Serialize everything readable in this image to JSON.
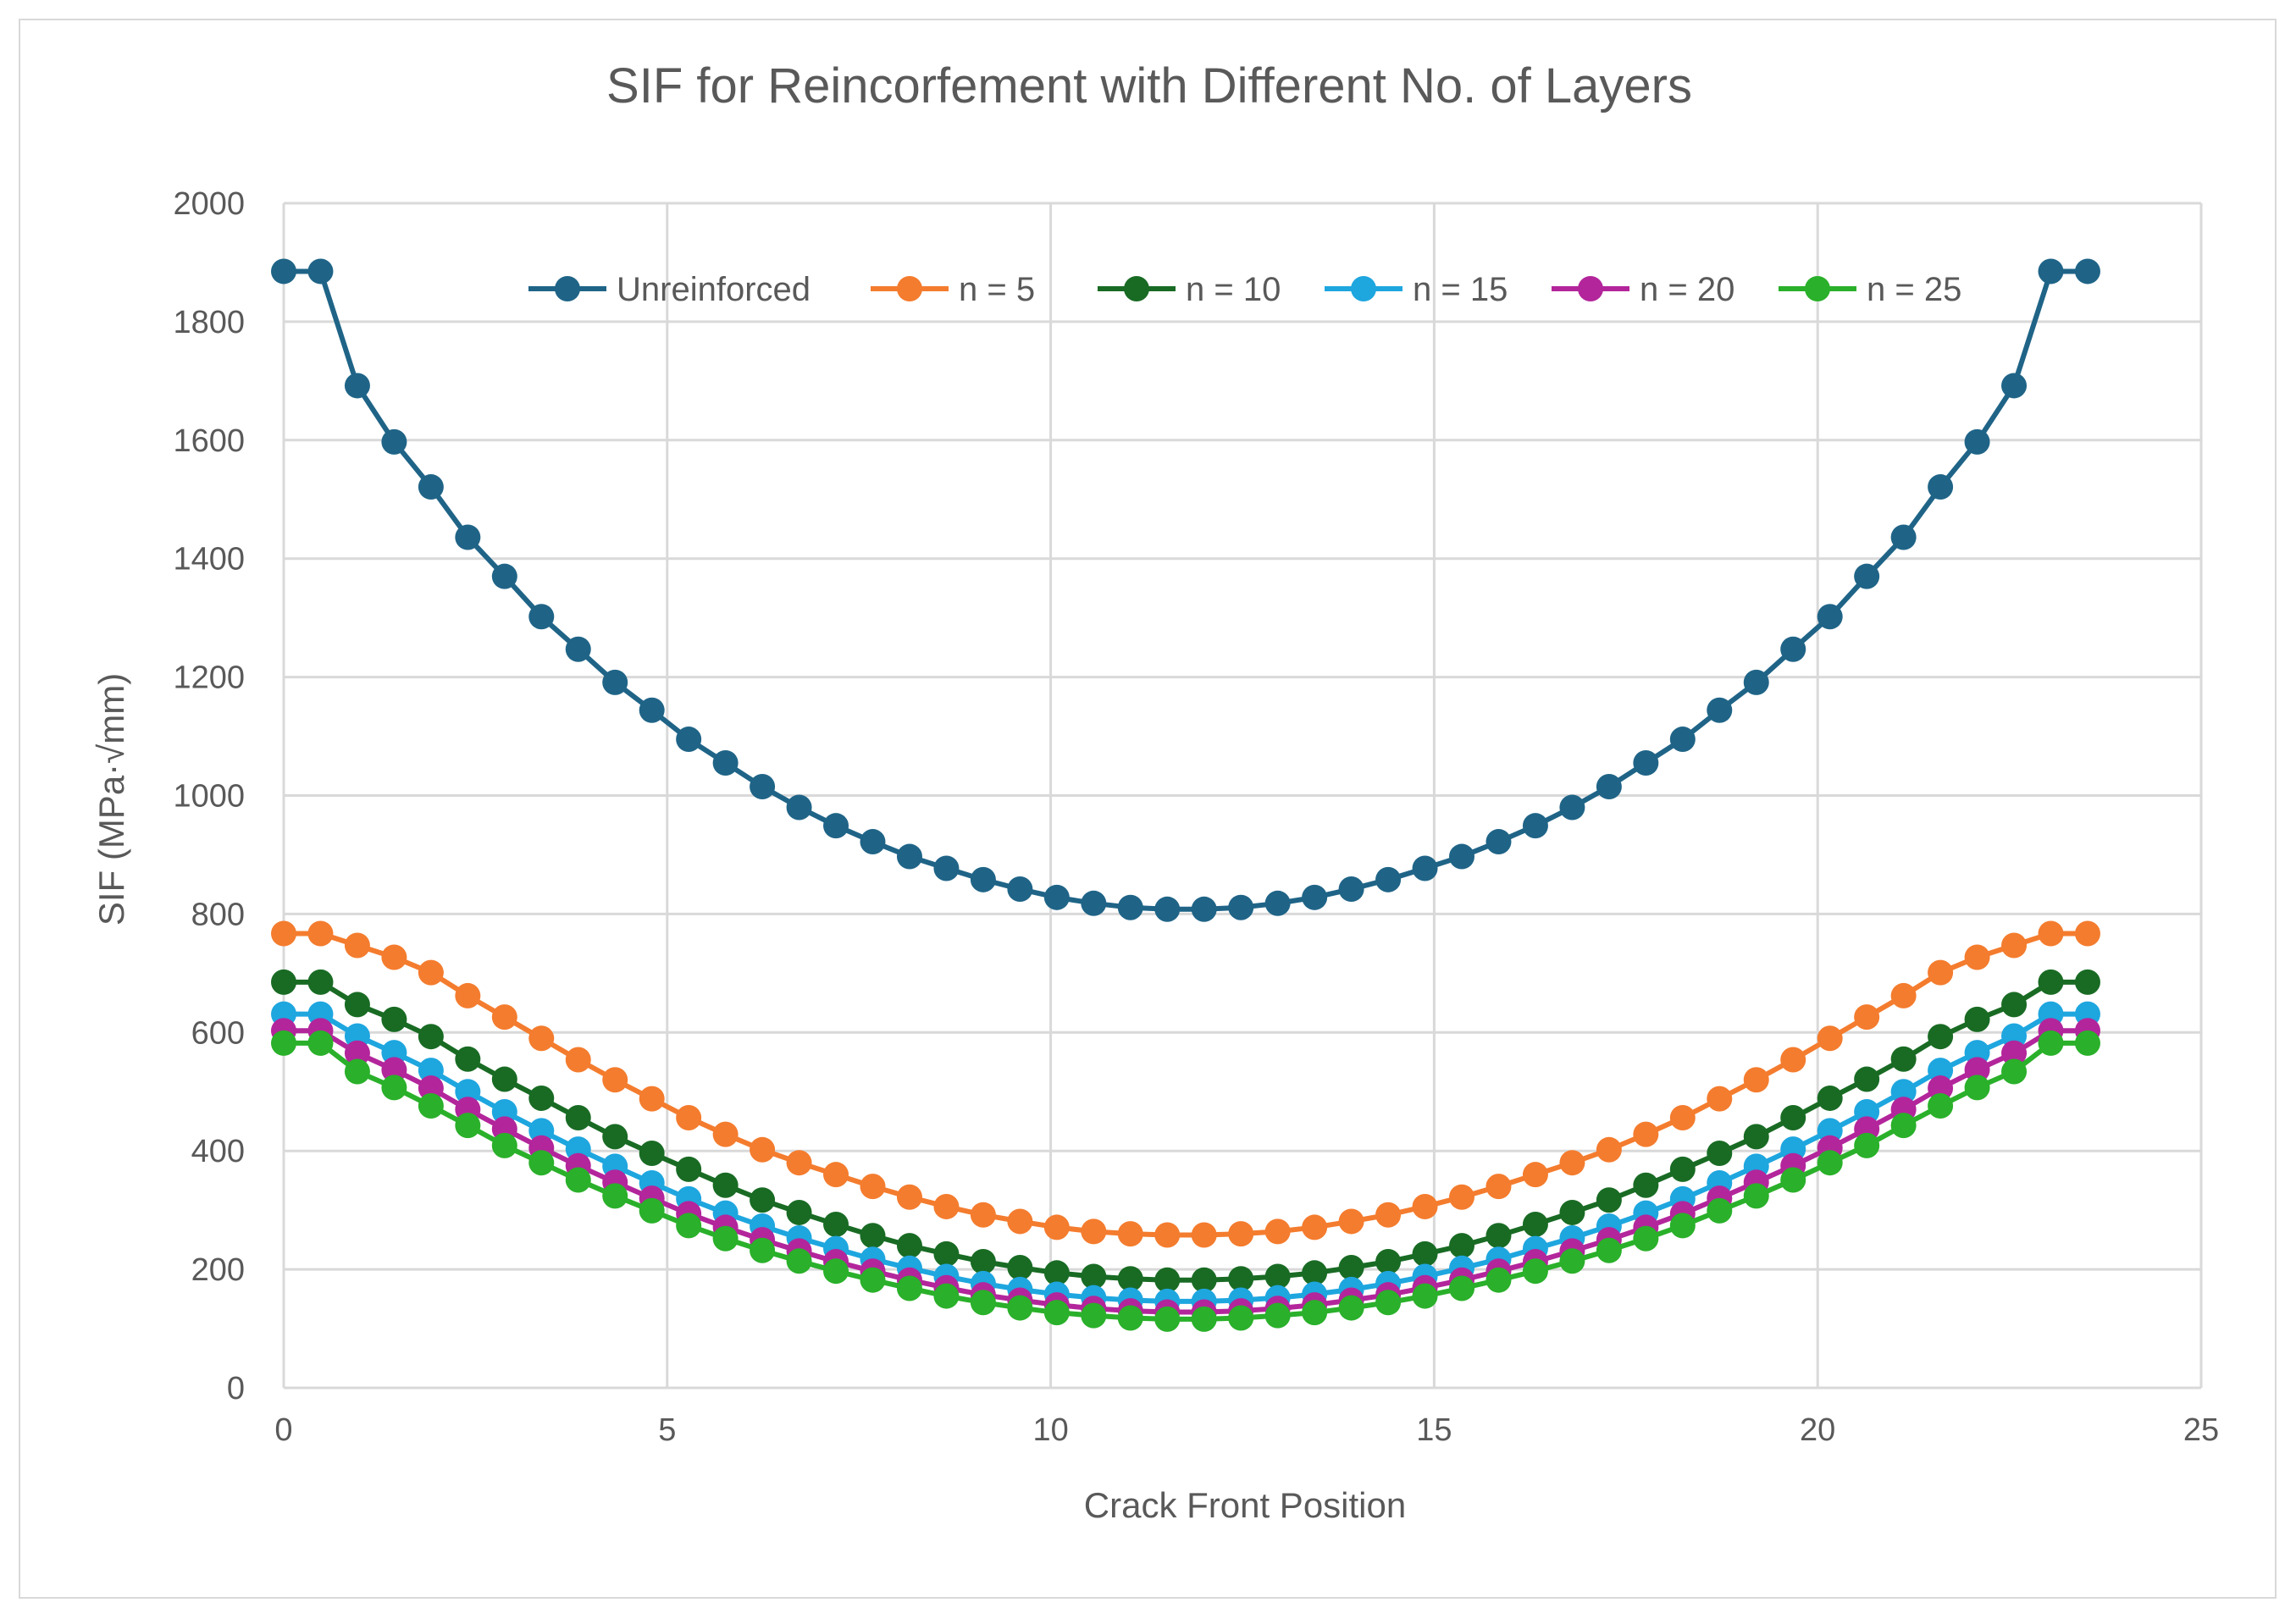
{
  "chart_data": {
    "type": "line",
    "title": "SIF for Reincorfement with Different No. of Layers",
    "xlabel": "Crack Front Position",
    "ylabel": "SIF (MPa·√mm)",
    "xlim": [
      0,
      25
    ],
    "ylim": [
      0,
      2000
    ],
    "xticks": [
      0,
      5,
      10,
      15,
      20,
      25
    ],
    "yticks": [
      0,
      200,
      400,
      600,
      800,
      1000,
      1200,
      1400,
      1600,
      1800,
      2000
    ],
    "grid": true,
    "legend_position": "top-center",
    "x": [
      0,
      0.48,
      0.96,
      1.44,
      1.92,
      2.4,
      2.88,
      3.36,
      3.84,
      4.32,
      4.8,
      5.28,
      5.76,
      6.24,
      6.72,
      7.2,
      7.68,
      8.16,
      8.64,
      9.12,
      9.6,
      10.08,
      10.56,
      11.04,
      11.52,
      12.0,
      12.48,
      12.96,
      13.44,
      13.92,
      14.4,
      14.88,
      15.36,
      15.84,
      16.32,
      16.8,
      17.28,
      17.76,
      18.24,
      18.72,
      19.2,
      19.68,
      20.16,
      20.64,
      21.12,
      21.6,
      22.08,
      22.56,
      23.04,
      23.52
    ],
    "series": [
      {
        "name": "Unreinforced",
        "color": "#1f6487",
        "values": [
          1885,
          1885,
          1692,
          1597,
          1521,
          1436,
          1370,
          1302,
          1247,
          1191,
          1144,
          1095,
          1055,
          1015,
          980,
          949,
          922,
          897,
          877,
          858,
          842,
          828,
          818,
          811,
          808,
          808,
          811,
          818,
          828,
          842,
          858,
          877,
          897,
          922,
          949,
          980,
          1015,
          1055,
          1095,
          1144,
          1191,
          1247,
          1302,
          1370,
          1436,
          1521,
          1597,
          1692,
          1885,
          1885
        ]
      },
      {
        "name": "n = 5",
        "color": "#f47c2e",
        "values": [
          767,
          767,
          747,
          727,
          701,
          662,
          626,
          590,
          554,
          520,
          488,
          456,
          428,
          402,
          380,
          360,
          340,
          322,
          306,
          292,
          281,
          271,
          264,
          260,
          258,
          258,
          260,
          264,
          271,
          281,
          292,
          306,
          322,
          340,
          360,
          380,
          402,
          428,
          456,
          488,
          520,
          554,
          590,
          626,
          662,
          701,
          727,
          747,
          767,
          767
        ]
      },
      {
        "name": "n = 10",
        "color": "#196b24",
        "values": [
          685,
          685,
          647,
          622,
          593,
          555,
          521,
          489,
          456,
          424,
          396,
          369,
          342,
          317,
          296,
          276,
          257,
          240,
          226,
          213,
          203,
          194,
          188,
          184,
          182,
          182,
          184,
          188,
          194,
          203,
          213,
          226,
          240,
          257,
          276,
          296,
          317,
          342,
          369,
          396,
          424,
          456,
          489,
          521,
          555,
          593,
          622,
          647,
          685,
          685
        ]
      },
      {
        "name": "n = 15",
        "color": "#1ea6df",
        "values": [
          631,
          631,
          594,
          566,
          536,
          500,
          466,
          434,
          403,
          374,
          346,
          319,
          295,
          273,
          253,
          235,
          217,
          202,
          188,
          176,
          166,
          158,
          152,
          148,
          146,
          146,
          148,
          152,
          158,
          166,
          176,
          188,
          202,
          217,
          235,
          253,
          273,
          295,
          319,
          346,
          374,
          403,
          434,
          466,
          500,
          536,
          566,
          594,
          631,
          631
        ]
      },
      {
        "name": "n = 20",
        "color": "#b3259b",
        "values": [
          603,
          603,
          565,
          537,
          506,
          470,
          437,
          405,
          375,
          347,
          320,
          294,
          271,
          250,
          231,
          213,
          197,
          182,
          169,
          157,
          148,
          140,
          134,
          130,
          128,
          128,
          130,
          134,
          140,
          148,
          157,
          169,
          182,
          197,
          213,
          231,
          250,
          271,
          294,
          320,
          347,
          375,
          405,
          437,
          470,
          506,
          537,
          565,
          603,
          603
        ]
      },
      {
        "name": "n = 25",
        "color": "#2ab02a",
        "values": [
          582,
          582,
          534,
          507,
          476,
          443,
          409,
          380,
          351,
          324,
          299,
          274,
          252,
          232,
          214,
          197,
          182,
          168,
          155,
          144,
          135,
          127,
          122,
          118,
          116,
          116,
          118,
          122,
          127,
          135,
          144,
          155,
          168,
          182,
          197,
          214,
          232,
          252,
          274,
          299,
          324,
          351,
          380,
          409,
          443,
          476,
          507,
          534,
          582,
          582
        ]
      }
    ]
  }
}
